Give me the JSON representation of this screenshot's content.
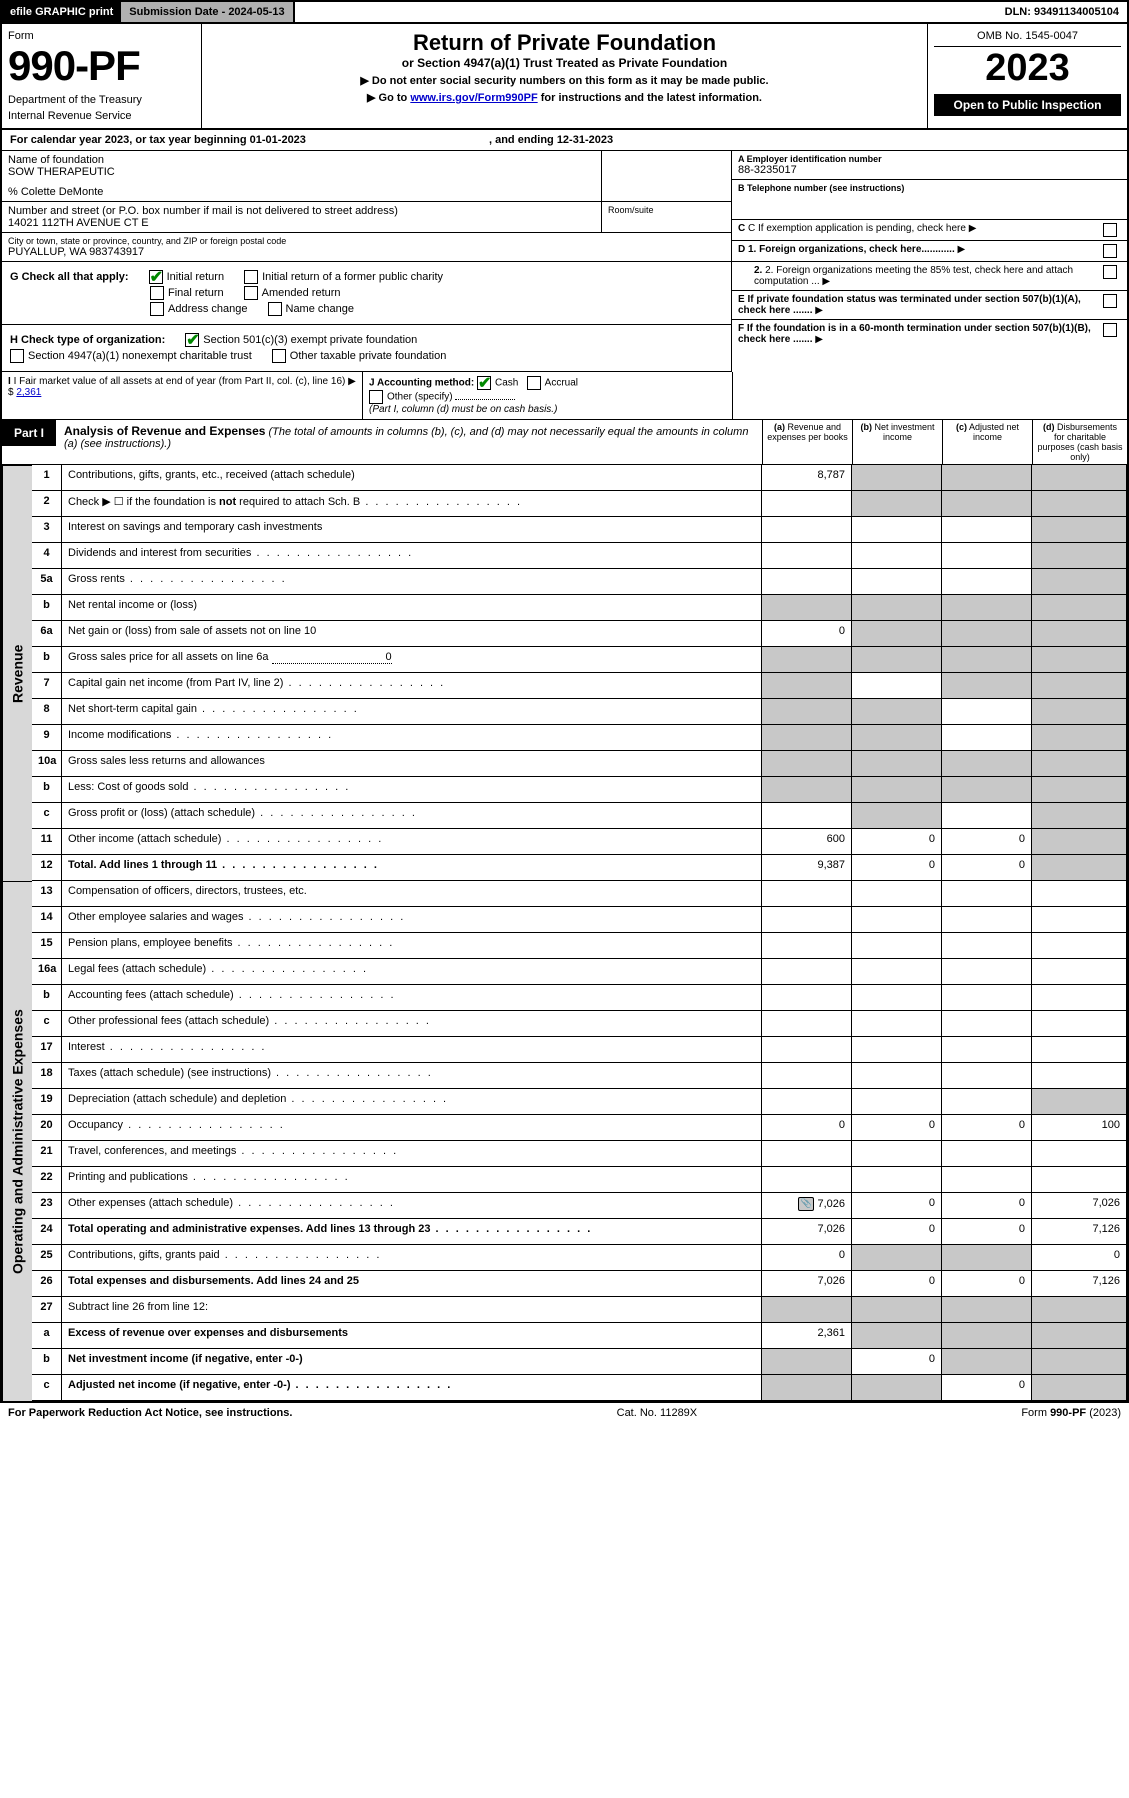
{
  "topbar": {
    "efile": "efile GRAPHIC print",
    "sub_label": "Submission Date - 2024-05-13",
    "dln": "DLN: 93491134005104"
  },
  "header": {
    "form_word": "Form",
    "form_num": "990-PF",
    "dept": "Department of the Treasury",
    "irs": "Internal Revenue Service",
    "title": "Return of Private Foundation",
    "subtitle": "or Section 4947(a)(1) Trust Treated as Private Foundation",
    "inst1": "▶ Do not enter social security numbers on this form as it may be made public.",
    "inst2_pre": "▶ Go to ",
    "inst2_link": "www.irs.gov/Form990PF",
    "inst2_post": " for instructions and the latest information.",
    "omb": "OMB No. 1545-0047",
    "year": "2023",
    "open": "Open to Public Inspection"
  },
  "calyear": {
    "text": "For calendar year 2023, or tax year beginning 01-01-2023",
    "ending": ", and ending 12-31-2023"
  },
  "info": {
    "name_lbl": "Name of foundation",
    "name": "SOW THERAPEUTIC",
    "co": "% Colette DeMonte",
    "addr_lbl": "Number and street (or P.O. box number if mail is not delivered to street address)",
    "addr": "14021 112TH AVENUE CT E",
    "room_lbl": "Room/suite",
    "city_lbl": "City or town, state or province, country, and ZIP or foreign postal code",
    "city": "PUYALLUP, WA  983743917",
    "a_lbl": "A Employer identification number",
    "a_val": "88-3235017",
    "b_lbl": "B Telephone number (see instructions)",
    "c_lbl": "C If exemption application is pending, check here",
    "d1": "D 1. Foreign organizations, check here............",
    "d2": "2. Foreign organizations meeting the 85% test, check here and attach computation ...",
    "e_lbl": "E  If private foundation status was terminated under section 507(b)(1)(A), check here .......",
    "f_lbl": "F  If the foundation is in a 60-month termination under section 507(b)(1)(B), check here .......",
    "g_lbl": "G Check all that apply:",
    "g_initial": "Initial return",
    "g_initial_former": "Initial return of a former public charity",
    "g_final": "Final return",
    "g_amended": "Amended return",
    "g_addr": "Address change",
    "g_name": "Name change",
    "h_lbl": "H Check type of organization:",
    "h_501c3": "Section 501(c)(3) exempt private foundation",
    "h_4947": "Section 4947(a)(1) nonexempt charitable trust",
    "h_other_tax": "Other taxable private foundation",
    "i_lbl": "I Fair market value of all assets at end of year (from Part II, col. (c), line 16)",
    "i_val": "2,361",
    "j_lbl": "J Accounting method:",
    "j_cash": "Cash",
    "j_accrual": "Accrual",
    "j_other": "Other (specify)",
    "j_note": "(Part I, column (d) must be on cash basis.)"
  },
  "part1": {
    "badge": "Part I",
    "title": "Analysis of Revenue and Expenses",
    "title_note": " (The total of amounts in columns (b), (c), and (d) may not necessarily equal the amounts in column (a) (see instructions).)",
    "col_a": "(a) Revenue and expenses per books",
    "col_b": "(b) Net investment income",
    "col_c": "(c) Adjusted net income",
    "col_d": "(d) Disbursements for charitable purposes (cash basis only)",
    "side_rev": "Revenue",
    "side_exp": "Operating and Administrative Expenses"
  },
  "rows": [
    {
      "n": "1",
      "d": "",
      "a": "8,787",
      "b": "",
      "c": "",
      "sb": true,
      "sc": true,
      "sd": true
    },
    {
      "n": "2",
      "d": "",
      "a": "",
      "b": "",
      "c": "",
      "sb": true,
      "sc": true,
      "sd": true,
      "dots": true
    },
    {
      "n": "3",
      "d": "",
      "a": "",
      "b": "",
      "c": "",
      "sd": true
    },
    {
      "n": "4",
      "d": "",
      "a": "",
      "b": "",
      "c": "",
      "sd": true,
      "dots": true
    },
    {
      "n": "5a",
      "d": "",
      "a": "",
      "b": "",
      "c": "",
      "sd": true,
      "dots": true
    },
    {
      "n": "b",
      "d": "",
      "a": "",
      "b": "",
      "c": "",
      "sa": true,
      "sb": true,
      "sc": true,
      "sd": true
    },
    {
      "n": "6a",
      "d": "",
      "a": "0",
      "b": "",
      "c": "",
      "sb": true,
      "sc": true,
      "sd": true
    },
    {
      "n": "b",
      "d": "",
      "a": "",
      "b": "",
      "c": "",
      "sa": true,
      "sb": true,
      "sc": true,
      "sd": true,
      "inline": "0"
    },
    {
      "n": "7",
      "d": "",
      "a": "",
      "b": "",
      "c": "",
      "sa": true,
      "sc": true,
      "sd": true,
      "dots": true
    },
    {
      "n": "8",
      "d": "",
      "a": "",
      "b": "",
      "c": "",
      "sa": true,
      "sb": true,
      "sd": true,
      "dots": true
    },
    {
      "n": "9",
      "d": "",
      "a": "",
      "b": "",
      "c": "",
      "sa": true,
      "sb": true,
      "sd": true,
      "dots": true
    },
    {
      "n": "10a",
      "d": "",
      "a": "",
      "b": "",
      "c": "",
      "sa": true,
      "sb": true,
      "sc": true,
      "sd": true
    },
    {
      "n": "b",
      "d": "",
      "a": "",
      "b": "",
      "c": "",
      "sa": true,
      "sb": true,
      "sc": true,
      "sd": true,
      "dots": true
    },
    {
      "n": "c",
      "d": "",
      "a": "",
      "b": "",
      "c": "",
      "sb": true,
      "sd": true,
      "dots": true
    },
    {
      "n": "11",
      "d": "",
      "a": "600",
      "b": "0",
      "c": "0",
      "sd": true,
      "dots": true
    },
    {
      "n": "12",
      "d": "",
      "a": "9,387",
      "b": "0",
      "c": "0",
      "sd": true,
      "bold": true,
      "dots": true
    },
    {
      "n": "13",
      "d": "",
      "a": "",
      "b": "",
      "c": ""
    },
    {
      "n": "14",
      "d": "",
      "a": "",
      "b": "",
      "c": "",
      "dots": true
    },
    {
      "n": "15",
      "d": "",
      "a": "",
      "b": "",
      "c": "",
      "dots": true
    },
    {
      "n": "16a",
      "d": "",
      "a": "",
      "b": "",
      "c": "",
      "dots": true
    },
    {
      "n": "b",
      "d": "",
      "a": "",
      "b": "",
      "c": "",
      "dots": true
    },
    {
      "n": "c",
      "d": "",
      "a": "",
      "b": "",
      "c": "",
      "dots": true
    },
    {
      "n": "17",
      "d": "",
      "a": "",
      "b": "",
      "c": "",
      "dots": true
    },
    {
      "n": "18",
      "d": "",
      "a": "",
      "b": "",
      "c": "",
      "dots": true
    },
    {
      "n": "19",
      "d": "",
      "a": "",
      "b": "",
      "c": "",
      "sd": true,
      "dots": true
    },
    {
      "n": "20",
      "d": "100",
      "a": "0",
      "b": "0",
      "c": "0",
      "dots": true
    },
    {
      "n": "21",
      "d": "",
      "a": "",
      "b": "",
      "c": "",
      "dots": true
    },
    {
      "n": "22",
      "d": "",
      "a": "",
      "b": "",
      "c": "",
      "dots": true
    },
    {
      "n": "23",
      "d": "7,026",
      "a": "7,026",
      "b": "0",
      "c": "0",
      "dots": true,
      "sched": true
    },
    {
      "n": "24",
      "d": "7,126",
      "a": "7,026",
      "b": "0",
      "c": "0",
      "bold": true,
      "dots": true
    },
    {
      "n": "25",
      "d": "0",
      "a": "0",
      "b": "",
      "c": "",
      "sb": true,
      "sc": true,
      "dots": true
    },
    {
      "n": "26",
      "d": "7,126",
      "a": "7,026",
      "b": "0",
      "c": "0",
      "bold": true
    },
    {
      "n": "27",
      "d": "",
      "a": "",
      "b": "",
      "c": "",
      "sa": true,
      "sb": true,
      "sc": true,
      "sd": true
    },
    {
      "n": "a",
      "d": "",
      "a": "2,361",
      "b": "",
      "c": "",
      "sb": true,
      "sc": true,
      "sd": true,
      "bold": true
    },
    {
      "n": "b",
      "d": "",
      "a": "",
      "b": "0",
      "c": "",
      "sa": true,
      "sc": true,
      "sd": true,
      "bold": true
    },
    {
      "n": "c",
      "d": "",
      "a": "",
      "b": "",
      "c": "0",
      "sa": true,
      "sb": true,
      "sd": true,
      "bold": true,
      "dots": true
    }
  ],
  "footer": {
    "left": "For Paperwork Reduction Act Notice, see instructions.",
    "mid": "Cat. No. 11289X",
    "right": "Form 990-PF (2023)"
  }
}
